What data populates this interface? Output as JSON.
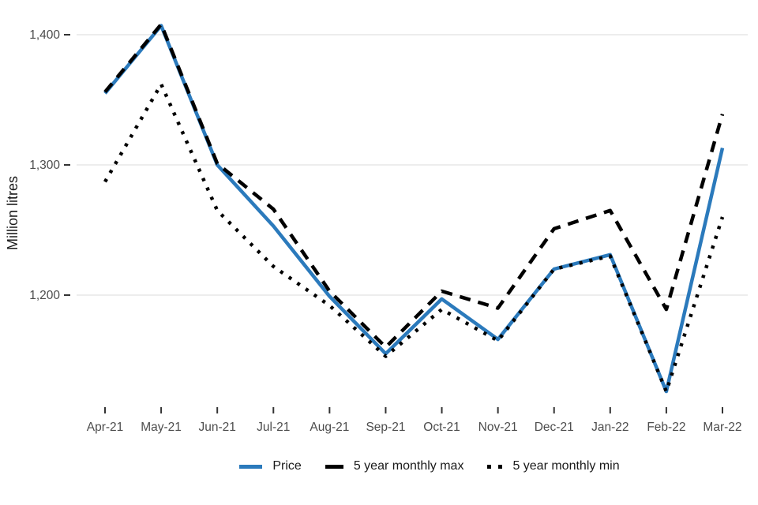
{
  "chart_data": {
    "type": "line",
    "title": "",
    "categories": [
      "Apr-21",
      "May-21",
      "Jun-21",
      "Jul-21",
      "Aug-21",
      "Sep-21",
      "Oct-21",
      "Nov-21",
      "Dec-21",
      "Jan-22",
      "Feb-22",
      "Mar-22"
    ],
    "series": [
      {
        "name": "Price",
        "color": "#2b7abc",
        "style": "solid",
        "values": [
          1355,
          1407,
          1300,
          1253,
          1199,
          1155,
          1197,
          1166,
          1220,
          1231,
          1126,
          1313
        ]
      },
      {
        "name": "5 year monthly max",
        "color": "#000000",
        "style": "dashed",
        "values": [
          1356,
          1408,
          1301,
          1266,
          1203,
          1160,
          1203,
          1190,
          1251,
          1265,
          1189,
          1339
        ]
      },
      {
        "name": "5 year monthly min",
        "color": "#000000",
        "style": "dotted",
        "values": [
          1287,
          1362,
          1265,
          1222,
          1192,
          1153,
          1189,
          1165,
          1220,
          1230,
          1126,
          1260
        ]
      }
    ],
    "xlabel": "",
    "ylabel": "Million litres",
    "yticks": [
      1200,
      1300,
      1400
    ],
    "ytick_labels": [
      "1,200",
      "1,300",
      "1,400"
    ],
    "ylim": [
      1118,
      1412
    ],
    "grid": "horizontal-major-only",
    "legend_position": "bottom-center",
    "colors": {
      "accent_blue": "#2b7abc",
      "gridline": "#e7e7e7",
      "axis_text": "#4d4d4d",
      "tick_mark": "#333333",
      "axis_title": "#1a1a1a"
    }
  }
}
